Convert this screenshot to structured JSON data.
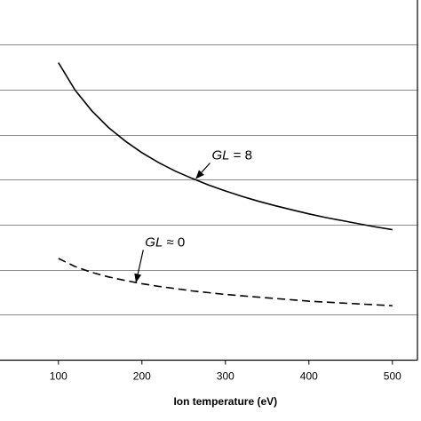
{
  "chart_data": {
    "type": "line",
    "title": "",
    "xlabel": "Ion temperature (eV)",
    "ylabel": "",
    "xlim": [
      30,
      530
    ],
    "ylim": [
      0,
      7.5
    ],
    "x_ticks": [
      100,
      200,
      300,
      400,
      500
    ],
    "x_tick_labels": [
      "100",
      "200",
      "300",
      "400",
      "500"
    ],
    "y_gridlines": [
      0,
      1,
      2,
      3,
      4,
      5,
      6,
      7
    ],
    "grid": true,
    "legend": "none",
    "series": [
      {
        "style": "solid",
        "x": [
          100,
          120,
          140,
          160,
          180,
          200,
          220,
          240,
          260,
          280,
          300,
          320,
          340,
          360,
          380,
          400,
          420,
          440,
          460,
          480,
          500
        ],
        "y": [
          6.6,
          5.99,
          5.53,
          5.16,
          4.86,
          4.6,
          4.38,
          4.19,
          4.03,
          3.88,
          3.75,
          3.63,
          3.52,
          3.42,
          3.33,
          3.24,
          3.16,
          3.09,
          3.02,
          2.95,
          2.89
        ]
      },
      {
        "style": "dashed",
        "x": [
          100,
          120,
          140,
          160,
          180,
          200,
          220,
          240,
          260,
          280,
          300,
          320,
          340,
          360,
          380,
          400,
          420,
          440,
          460,
          480,
          500
        ],
        "y": [
          2.25,
          2.07,
          1.94,
          1.84,
          1.76,
          1.69,
          1.63,
          1.58,
          1.53,
          1.49,
          1.45,
          1.42,
          1.39,
          1.36,
          1.33,
          1.3,
          1.28,
          1.26,
          1.24,
          1.22,
          1.2
        ]
      }
    ],
    "annotations": [
      {
        "text_italic": "GL",
        "text_rest": " = 8",
        "arrow_to": [
          265,
          4.03
        ],
        "label_at": [
          305,
          4.45
        ]
      },
      {
        "text_italic": "GL",
        "text_rest": " ≈ 0",
        "arrow_to": [
          193,
          1.73
        ],
        "label_at": [
          225,
          2.52
        ]
      }
    ]
  }
}
